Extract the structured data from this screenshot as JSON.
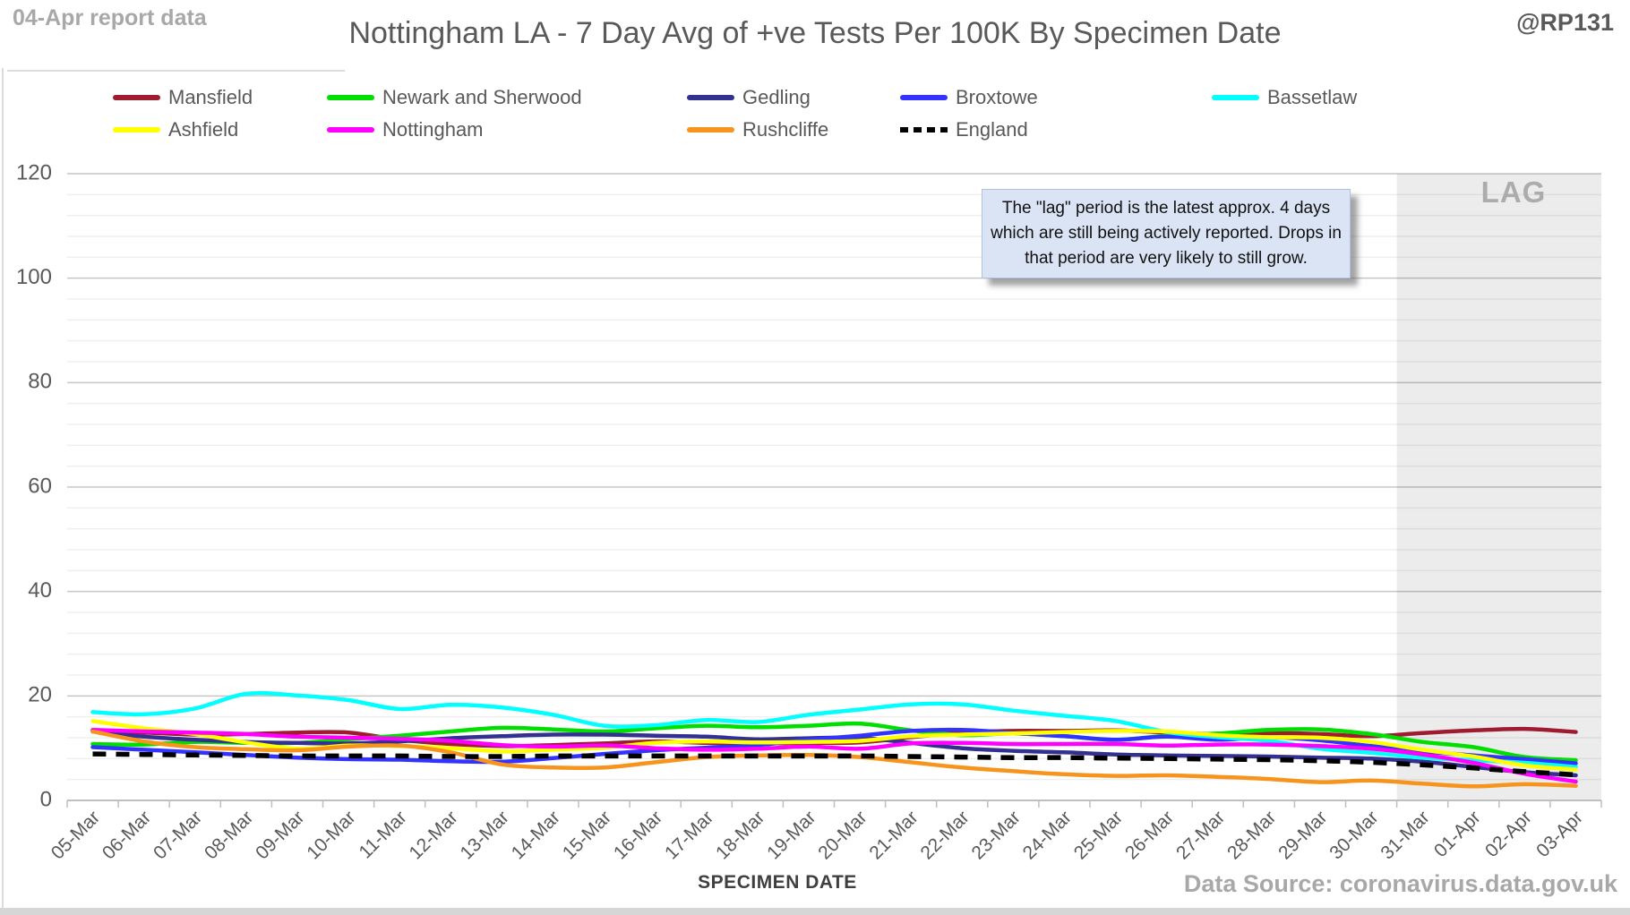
{
  "header": {
    "report_date": "04-Apr report data",
    "title": "Nottingham LA - 7 Day Avg of +ve Tests Per 100K By Specimen Date",
    "handle": "@RP131"
  },
  "annotation": {
    "text": "The \"lag\" period is the latest approx. 4 days which are still being actively reported.  Drops in that period are very likely to still grow."
  },
  "footer": {
    "xaxis_title": "SPECIMEN DATE",
    "data_source": "Data Source: coronavirus.data.gov.uk"
  },
  "chart_data": {
    "type": "line",
    "title": "Nottingham LA - 7 Day Avg of +ve Tests Per 100K By Specimen Date",
    "xlabel": "SPECIMEN DATE",
    "ylabel": "",
    "ylim": [
      0,
      120
    ],
    "y_major_step": 20,
    "y_minor_step": 4,
    "grid": true,
    "legend_position": "top",
    "lag_region": {
      "start_category": "31-Mar",
      "label": "LAG"
    },
    "x": [
      "05-Mar",
      "06-Mar",
      "07-Mar",
      "08-Mar",
      "09-Mar",
      "10-Mar",
      "11-Mar",
      "12-Mar",
      "13-Mar",
      "14-Mar",
      "15-Mar",
      "16-Mar",
      "17-Mar",
      "18-Mar",
      "19-Mar",
      "20-Mar",
      "21-Mar",
      "22-Mar",
      "23-Mar",
      "24-Mar",
      "25-Mar",
      "26-Mar",
      "27-Mar",
      "28-Mar",
      "29-Mar",
      "30-Mar",
      "31-Mar",
      "01-Apr",
      "02-Apr",
      "03-Apr"
    ],
    "series": [
      {
        "name": "Mansfield",
        "color": "#9E1B30",
        "dashed": false,
        "values": [
          13.4,
          13.0,
          12.6,
          12.7,
          13.0,
          13.0,
          11.6,
          10.8,
          10.4,
          10.6,
          10.9,
          11.3,
          11.0,
          10.9,
          11.0,
          11.1,
          12.1,
          13.0,
          13.3,
          13.3,
          13.4,
          13.0,
          12.7,
          12.9,
          12.7,
          12.3,
          12.9,
          13.4,
          13.7,
          13.1
        ]
      },
      {
        "name": "Newark and Sherwood",
        "color": "#00DF00",
        "dashed": false,
        "values": [
          10.8,
          10.7,
          11.2,
          11.0,
          11.0,
          11.7,
          12.4,
          13.2,
          13.9,
          13.6,
          13.2,
          13.8,
          14.3,
          14.0,
          14.3,
          14.7,
          13.4,
          12.5,
          12.8,
          12.3,
          11.6,
          12.4,
          12.8,
          13.5,
          13.6,
          12.7,
          11.2,
          10.2,
          8.3,
          7.7
        ]
      },
      {
        "name": "Gedling",
        "color": "#333091",
        "dashed": false,
        "values": [
          13.2,
          12.2,
          11.6,
          11.2,
          11.0,
          10.9,
          11.3,
          11.9,
          12.3,
          12.6,
          12.6,
          12.4,
          12.2,
          11.7,
          11.9,
          12.0,
          11.0,
          10.0,
          9.5,
          9.2,
          8.8,
          8.6,
          8.5,
          8.4,
          8.2,
          8.0,
          7.4,
          6.4,
          5.4,
          4.8
        ]
      },
      {
        "name": "Broxtowe",
        "color": "#3333FF",
        "dashed": false,
        "values": [
          10.2,
          9.7,
          9.2,
          8.7,
          8.2,
          7.9,
          7.8,
          7.5,
          7.4,
          8.1,
          8.9,
          9.6,
          10.1,
          10.6,
          11.6,
          12.4,
          13.3,
          13.5,
          12.9,
          12.3,
          11.6,
          12.2,
          11.6,
          12.1,
          11.5,
          10.4,
          9.4,
          8.6,
          7.9,
          7.1
        ]
      },
      {
        "name": "Bassetlaw",
        "color": "#00FFFF",
        "dashed": false,
        "values": [
          16.9,
          16.5,
          17.6,
          20.4,
          20.1,
          19.2,
          17.5,
          18.3,
          17.8,
          16.4,
          14.3,
          14.4,
          15.4,
          15.0,
          16.4,
          17.4,
          18.4,
          18.4,
          17.2,
          16.2,
          15.2,
          13.1,
          12.1,
          11.4,
          9.9,
          9.1,
          8.2,
          7.7,
          7.2,
          6.4
        ]
      },
      {
        "name": "Ashfield",
        "color": "#FFFF00",
        "dashed": false,
        "values": [
          15.2,
          13.8,
          12.7,
          11.1,
          9.9,
          10.5,
          10.4,
          10.0,
          9.4,
          9.7,
          10.1,
          11.0,
          11.3,
          11.1,
          11.2,
          11.4,
          12.3,
          12.6,
          12.8,
          13.1,
          13.3,
          13.2,
          12.5,
          12.1,
          12.0,
          11.2,
          9.7,
          8.4,
          6.7,
          5.9
        ]
      },
      {
        "name": "Nottingham",
        "color": "#FF00FF",
        "dashed": false,
        "values": [
          13.5,
          13.2,
          13.0,
          12.7,
          12.2,
          12.0,
          11.8,
          11.4,
          10.6,
          10.3,
          10.5,
          10.0,
          9.7,
          9.9,
          10.3,
          9.9,
          10.9,
          11.0,
          10.8,
          10.8,
          10.8,
          10.5,
          10.7,
          10.7,
          10.4,
          9.9,
          8.8,
          7.2,
          5.1,
          3.6
        ]
      },
      {
        "name": "Rushcliffe",
        "color": "#F7941D",
        "dashed": false,
        "values": [
          13.2,
          11.3,
          10.2,
          9.8,
          9.6,
          10.3,
          10.5,
          9.2,
          6.9,
          6.3,
          6.3,
          7.3,
          8.3,
          8.6,
          8.7,
          8.3,
          7.3,
          6.3,
          5.6,
          5.0,
          4.7,
          4.8,
          4.5,
          4.1,
          3.5,
          3.8,
          3.2,
          2.7,
          3.1,
          2.8
        ]
      },
      {
        "name": "England",
        "color": "#000000",
        "dashed": true,
        "values": [
          8.9,
          8.8,
          8.7,
          8.6,
          8.5,
          8.5,
          8.5,
          8.4,
          8.4,
          8.5,
          8.5,
          8.5,
          8.5,
          8.5,
          8.5,
          8.5,
          8.4,
          8.3,
          8.2,
          8.2,
          8.1,
          8.0,
          7.9,
          7.8,
          7.6,
          7.3,
          6.8,
          6.2,
          5.5,
          4.9
        ]
      }
    ]
  }
}
